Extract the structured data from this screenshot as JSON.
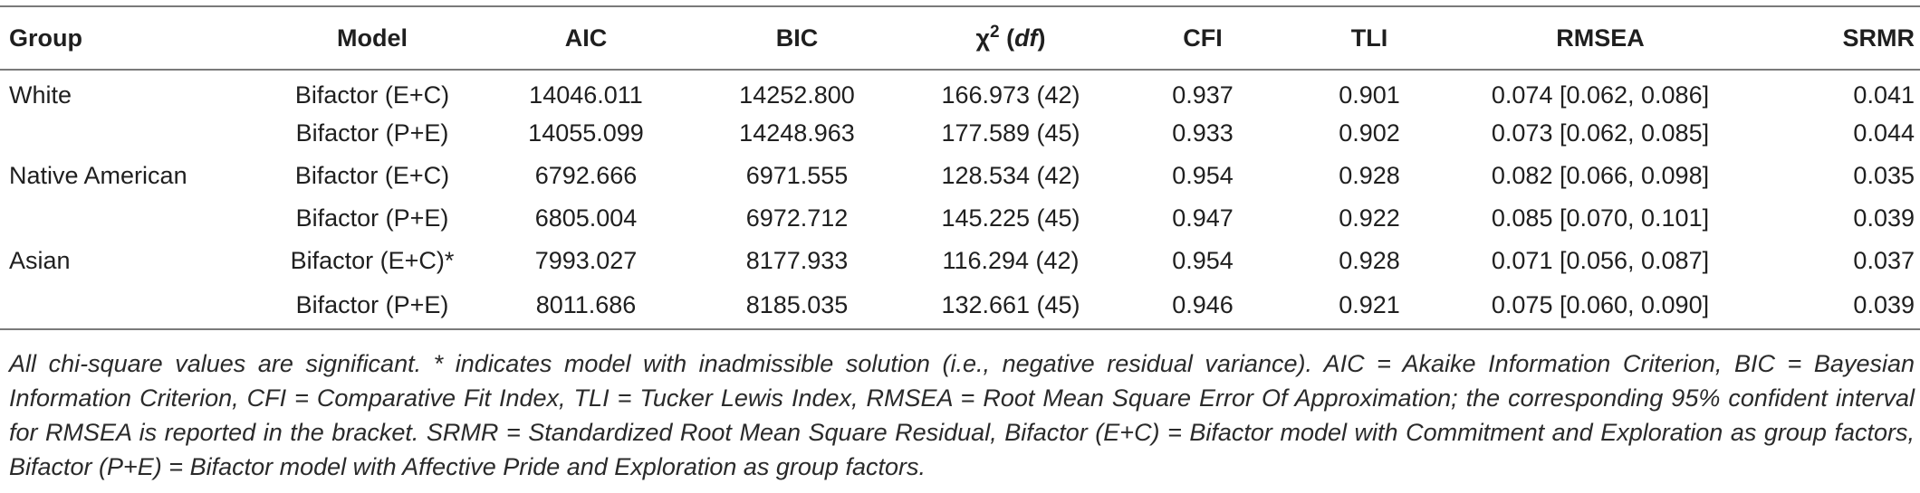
{
  "table": {
    "headers": {
      "group": "Group",
      "model": "Model",
      "aic": "AIC",
      "bic": "BIC",
      "chi_symbol": "χ",
      "chi_sup": "2",
      "chi_df": "df",
      "cfi": "CFI",
      "tli": "TLI",
      "rmsea": "RMSEA",
      "srmr": "SRMR"
    },
    "rows": [
      {
        "group": "White",
        "model": "Bifactor (E+C)",
        "aic": "14046.011",
        "bic": "14252.800",
        "chi": "166.973 (42)",
        "cfi": "0.937",
        "tli": "0.901",
        "rmsea": "0.074 [0.062, 0.086]",
        "srmr": "0.041"
      },
      {
        "group": "",
        "model": "Bifactor (P+E)",
        "aic": "14055.099",
        "bic": "14248.963",
        "chi": "177.589 (45)",
        "cfi": "0.933",
        "tli": "0.902",
        "rmsea": "0.073 [0.062, 0.085]",
        "srmr": "0.044"
      },
      {
        "group": "Native American",
        "model": "Bifactor (E+C)",
        "aic": "6792.666",
        "bic": "6971.555",
        "chi": "128.534 (42)",
        "cfi": "0.954",
        "tli": "0.928",
        "rmsea": "0.082 [0.066, 0.098]",
        "srmr": "0.035"
      },
      {
        "group": "",
        "model": "Bifactor (P+E)",
        "aic": "6805.004",
        "bic": "6972.712",
        "chi": "145.225 (45)",
        "cfi": "0.947",
        "tli": "0.922",
        "rmsea": "0.085 [0.070, 0.101]",
        "srmr": "0.039"
      },
      {
        "group": "Asian",
        "model": "Bifactor (E+C)*",
        "aic": "7993.027",
        "bic": "8177.933",
        "chi": "116.294 (42)",
        "cfi": "0.954",
        "tli": "0.928",
        "rmsea": "0.071 [0.056, 0.087]",
        "srmr": "0.037"
      },
      {
        "group": "",
        "model": "Bifactor (P+E)",
        "aic": "8011.686",
        "bic": "8185.035",
        "chi": "132.661 (45)",
        "cfi": "0.946",
        "tli": "0.921",
        "rmsea": "0.075 [0.060, 0.090]",
        "srmr": "0.039"
      }
    ]
  },
  "note": "All chi-square values are significant. * indicates model with inadmissible solution (i.e., negative residual variance). AIC = Akaike Information Criterion, BIC = Bayesian Information Criterion, CFI = Comparative Fit Index, TLI = Tucker Lewis Index, RMSEA = Root Mean Square Error Of Approximation; the corresponding 95% confident interval for RMSEA is reported in the bracket. SRMR = Standardized Root Mean Square Residual, Bifactor (E+C) = Bifactor model with Commitment and Exploration as group factors, Bifactor (P+E) = Bifactor model with Affective Pride and Exploration as group factors."
}
